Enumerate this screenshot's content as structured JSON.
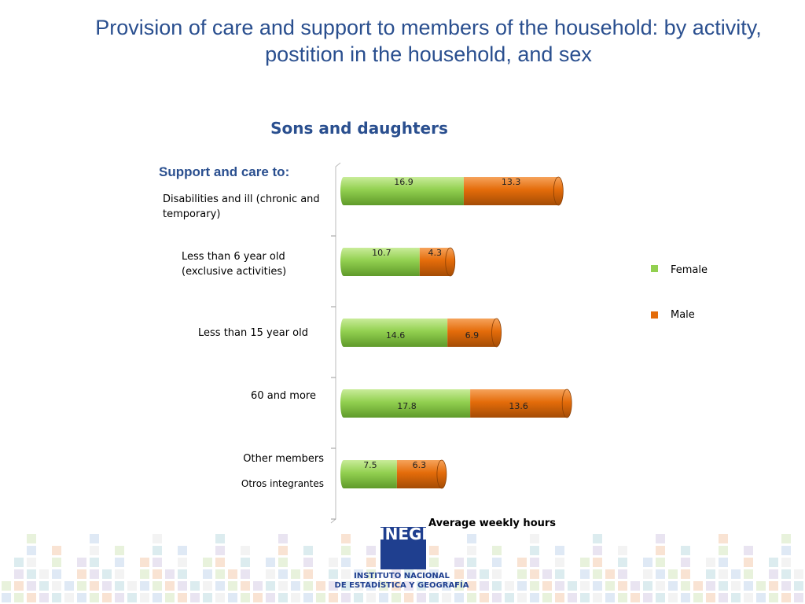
{
  "chart_data": {
    "type": "bar",
    "orientation": "horizontal",
    "stacked": true,
    "title": "Provision of care and support to members of the household: by activity, postition in the household, and sex",
    "subtitle": "Sons and daughters",
    "y_label": "Support and care to:",
    "x_label": "Average weekly hours",
    "categories": [
      "Disabilities and ill  (chronic and temporary)",
      "Less than 6 year old (exclusive activities)",
      "Less than 15 year old",
      "60 and more",
      "Other members"
    ],
    "annotations": [
      "Otros integrantes"
    ],
    "series": [
      {
        "name": "Female",
        "color": "#92d050",
        "values": [
          16.9,
          10.7,
          14.6,
          17.8,
          7.5
        ]
      },
      {
        "name": "Male",
        "color": "#e46c0a",
        "values": [
          13.3,
          4.3,
          6.9,
          13.6,
          6.3
        ]
      }
    ],
    "xlim": [
      0,
      40
    ],
    "legend": "right"
  },
  "logo": {
    "acronym": "INEGI",
    "line1": "INSTITUTO NACIONAL",
    "line2": "DE ESTADÍSTICA Y GEOGRAFÍA"
  }
}
